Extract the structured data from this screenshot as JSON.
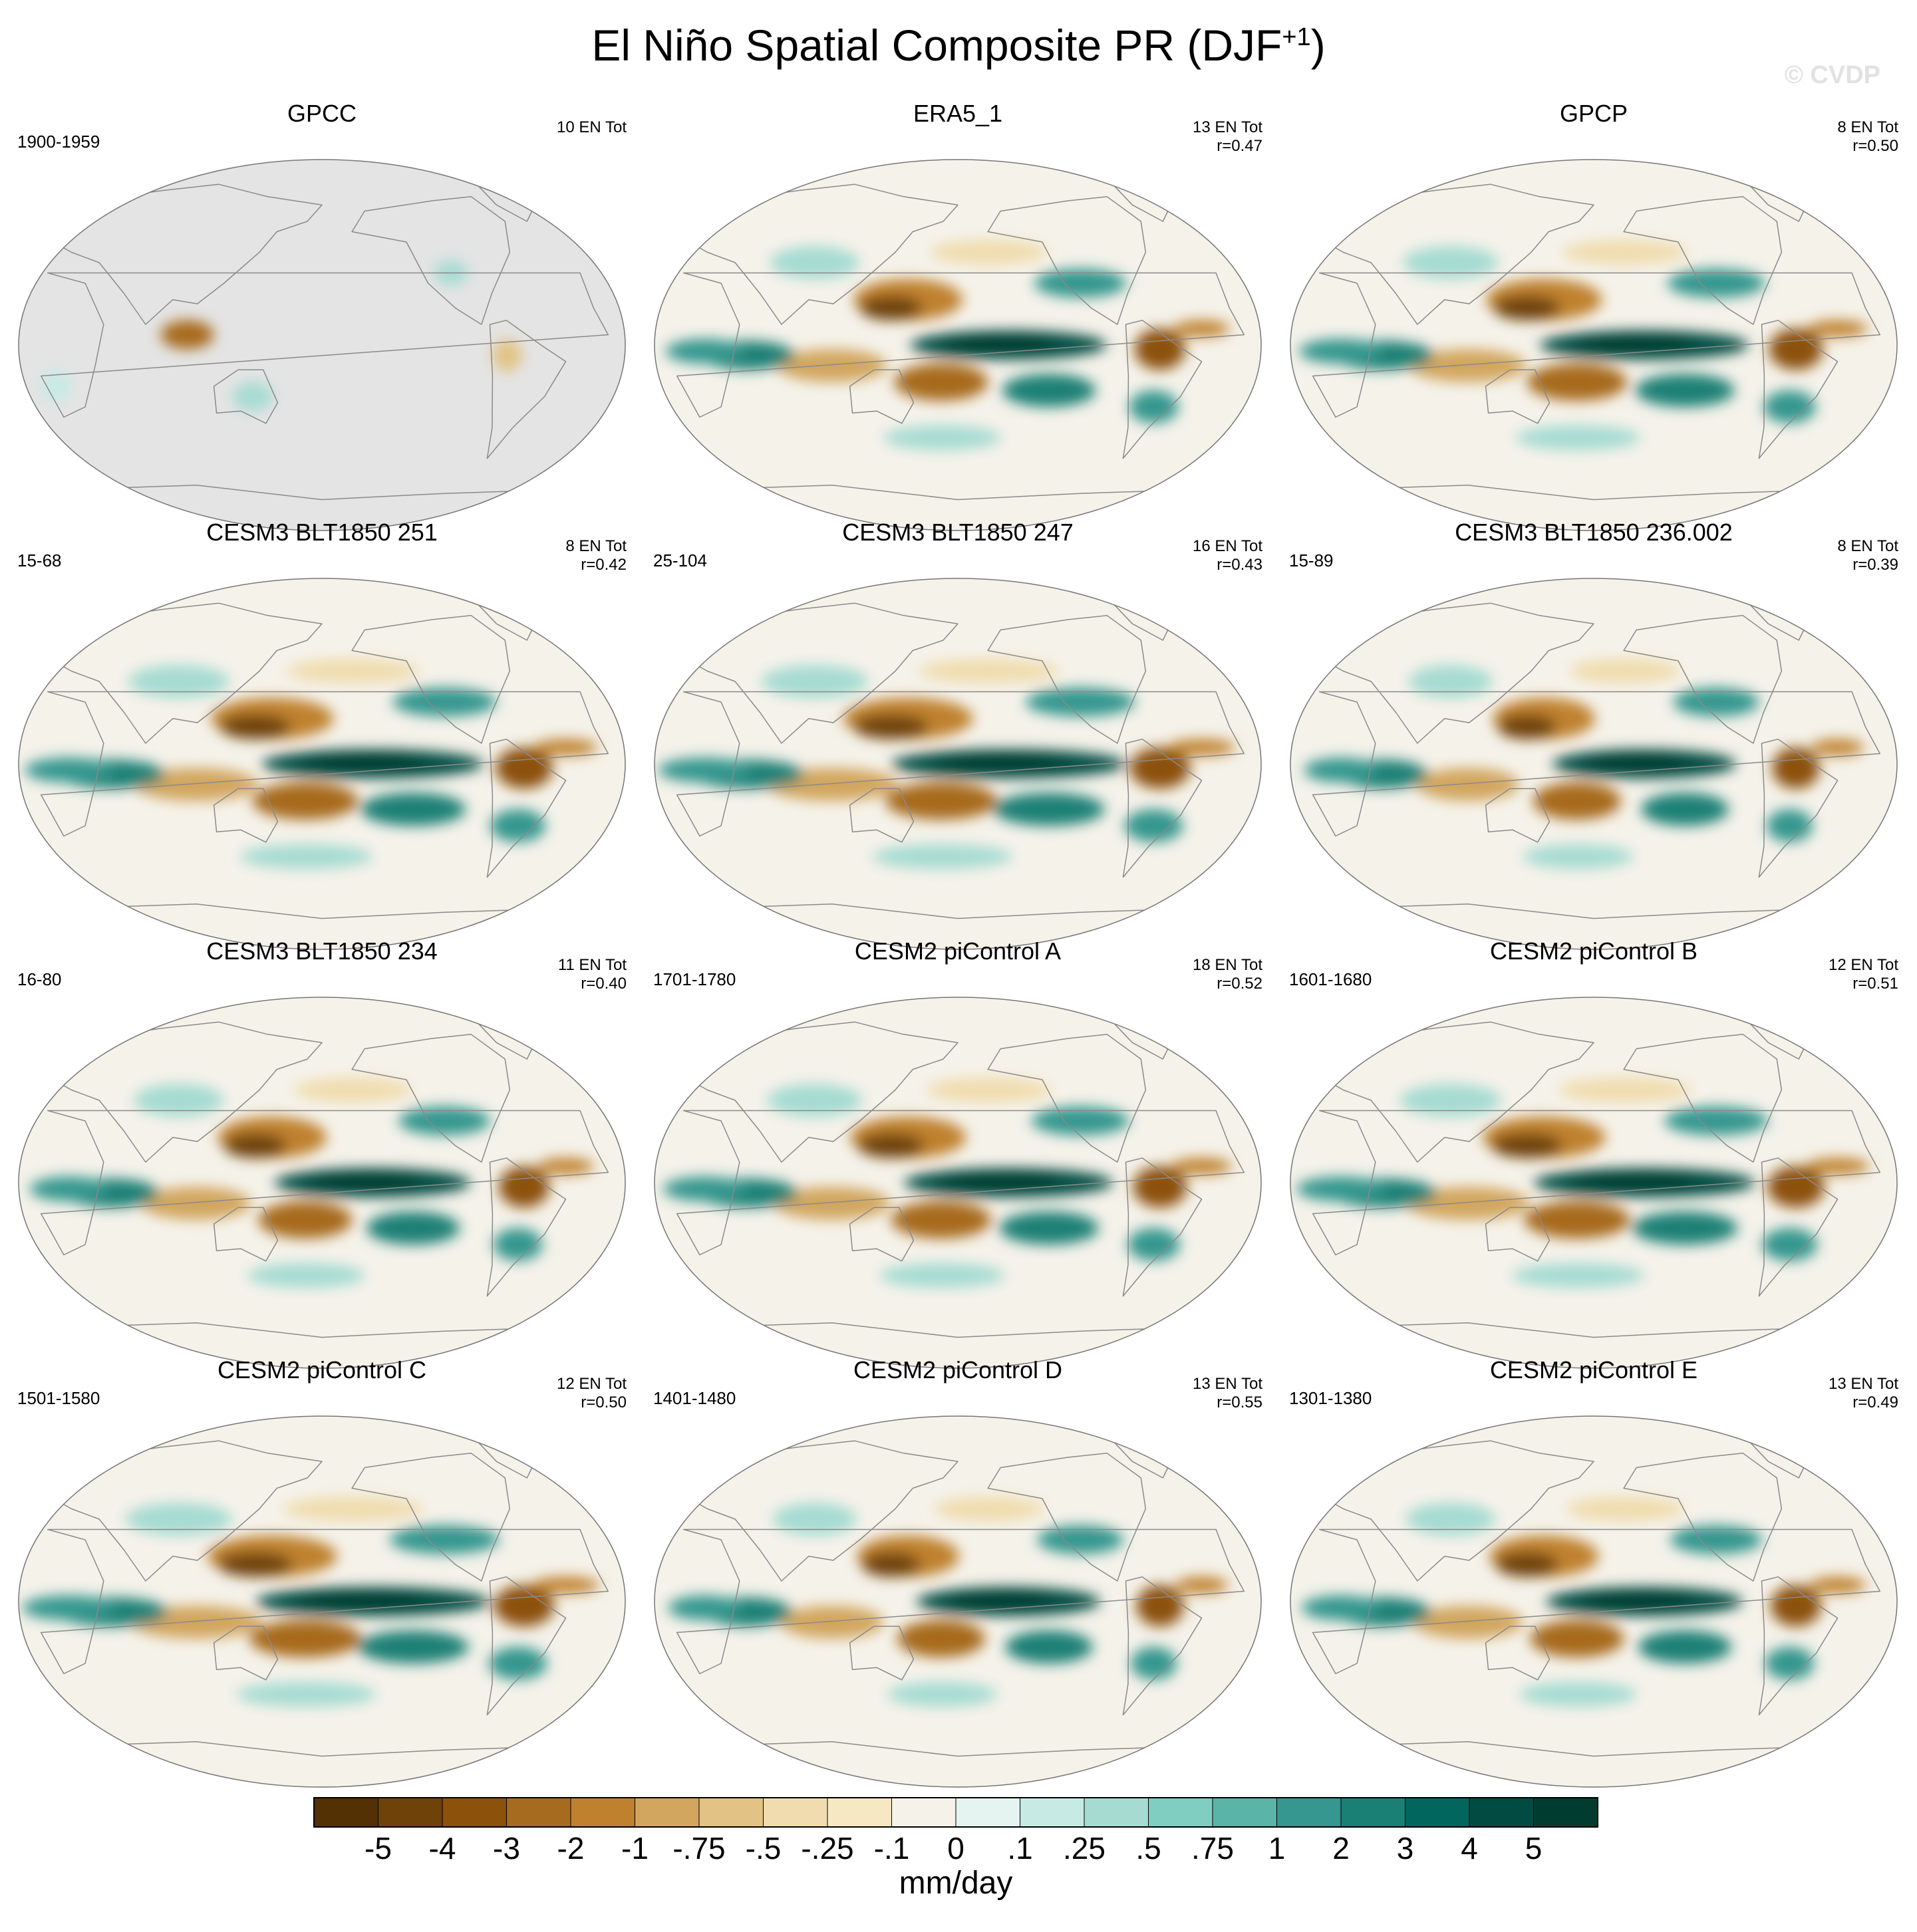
{
  "figure": {
    "title": "El Niño Spatial Composite PR (DJF",
    "title_superscript": "+1",
    "title_close": ")",
    "watermark": "© CVDP"
  },
  "chart_data": {
    "type": "heatmap",
    "projection": "Robinson (Pacific-centered)",
    "variable": "PR",
    "season": "DJF+1",
    "panels": [
      {
        "name": "GPCC",
        "years": "1900-1959",
        "en_count": "10 EN Tot",
        "r": "",
        "land_only": true
      },
      {
        "name": "ERA5_1",
        "years": "",
        "en_count": "13 EN Tot",
        "r": "r=0.47",
        "land_only": false
      },
      {
        "name": "GPCP",
        "years": "",
        "en_count": "8 EN Tot",
        "r": "r=0.50",
        "land_only": false
      },
      {
        "name": "CESM3 BLT1850 251",
        "years": "15-68",
        "en_count": "8 EN Tot",
        "r": "r=0.42",
        "land_only": false
      },
      {
        "name": "CESM3 BLT1850 247",
        "years": "25-104",
        "en_count": "16 EN Tot",
        "r": "r=0.43",
        "land_only": false
      },
      {
        "name": "CESM3 BLT1850 236.002",
        "years": "15-89",
        "en_count": "8 EN Tot",
        "r": "r=0.39",
        "land_only": false
      },
      {
        "name": "CESM3 BLT1850 234",
        "years": "16-80",
        "en_count": "11 EN Tot",
        "r": "r=0.40",
        "land_only": false
      },
      {
        "name": "CESM2 piControl A",
        "years": "1701-1780",
        "en_count": "18 EN Tot",
        "r": "r=0.52",
        "land_only": false
      },
      {
        "name": "CESM2 piControl B",
        "years": "1601-1680",
        "en_count": "12 EN Tot",
        "r": "r=0.51",
        "land_only": false
      },
      {
        "name": "CESM2 piControl C",
        "years": "1501-1580",
        "en_count": "12 EN Tot",
        "r": "r=0.50",
        "land_only": false
      },
      {
        "name": "CESM2 piControl D",
        "years": "1401-1480",
        "en_count": "13 EN Tot",
        "r": "r=0.55",
        "land_only": false
      },
      {
        "name": "CESM2 piControl E",
        "years": "1301-1380",
        "en_count": "13 EN Tot",
        "r": "r=0.49",
        "land_only": false
      }
    ],
    "colorbar": {
      "units": "mm/day",
      "tick_labels": [
        "-5",
        "-4",
        "-3",
        "-2",
        "-1",
        "-.75",
        "-.5",
        "-.25",
        "-.1",
        "0",
        ".1",
        ".25",
        ".5",
        ".75",
        "1",
        "2",
        "3",
        "4",
        "5"
      ],
      "colors": [
        "#543005",
        "#6f4209",
        "#8c510a",
        "#a76b1f",
        "#bf812d",
        "#d2a65f",
        "#e2c385",
        "#f0dcae",
        "#f6e8c3",
        "#f5f2ea",
        "#e5f3f1",
        "#c7eae5",
        "#a6dbd2",
        "#80cdc1",
        "#5ab4a8",
        "#35978f",
        "#1a8076",
        "#01665e",
        "#014b42",
        "#003c30"
      ]
    }
  }
}
